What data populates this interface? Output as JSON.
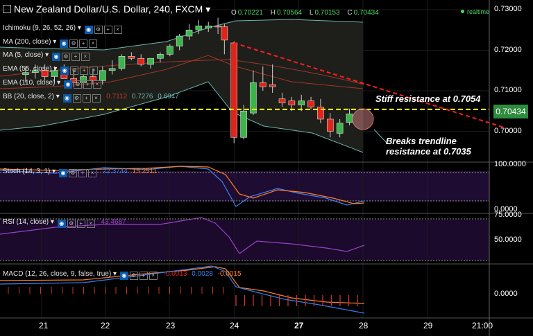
{
  "header": {
    "title": "New Zealand Dollar/U.S. Dollar, 240, FXCM",
    "ohlc": {
      "o_label": "O",
      "o": "0.70221",
      "h_label": "H",
      "h": "0.70564",
      "l_label": "L",
      "l": "0.70153",
      "c_label": "C",
      "c": "0.70434"
    },
    "realtime": "realtime"
  },
  "indicators": {
    "ichimoku": "Ichimoku (9, 26, 52, 26)",
    "ma200": "MA (200, close)",
    "ma5": "MA (5, close)",
    "ema55": "EMA (55, close)",
    "ema110": "EMA (110, close)",
    "bb": "BB (20, close, 2)",
    "bb_values": [
      "0.7112",
      "0.7276",
      "0.6947"
    ]
  },
  "annotations": {
    "stiff": "Stiff resistance at 0.7054",
    "breaks_line1": "Breaks trendline",
    "breaks_line2": "resistance at 0.7035"
  },
  "price_axis": {
    "labels": [
      "0.73000",
      "0.72000",
      "0.71000",
      "0.70000"
    ],
    "current": "0.70434"
  },
  "stoch": {
    "label": "Stoch (14, 3, 1)",
    "k": "22.3744",
    "d": "15.2511",
    "axis": [
      "100.0000",
      "0.0000"
    ]
  },
  "rsi": {
    "label": "RSI (14, close)",
    "value": "43.4687",
    "axis": [
      "75.0000",
      "50.0000"
    ]
  },
  "macd": {
    "label": "MACD (12, 26, close, 9, false, true)",
    "hist": "-0.0013",
    "signal": "0.0028",
    "macd": "-0.0015",
    "axis": [
      "0.0000"
    ]
  },
  "dates": [
    "21",
    "22",
    "23",
    "24",
    "27",
    "28",
    "29",
    "21:00"
  ],
  "colors": {
    "up": "#3cb44b",
    "down": "#e2231a",
    "resistance": "#ffff00",
    "trendline": "#ff1f1f",
    "bb": "#6bb6b0",
    "stoch_k": "#3b82f6",
    "stoch_d": "#ff7f27",
    "rsi": "#9b3fc4"
  },
  "chart_data": {
    "type": "candlestick",
    "ylim": [
      0.694,
      0.733
    ],
    "resistance_level": 0.7054,
    "trendline": [
      [
        0.7218,
        24.0
      ],
      [
        0.7035,
        28.05
      ]
    ],
    "candles": [
      {
        "t": 20.75,
        "o": 0.714,
        "h": 0.716,
        "l": 0.712,
        "c": 0.7145
      },
      {
        "t": 20.9,
        "o": 0.7145,
        "h": 0.7165,
        "l": 0.713,
        "c": 0.715
      },
      {
        "t": 21.05,
        "o": 0.715,
        "h": 0.7165,
        "l": 0.7125,
        "c": 0.7135
      },
      {
        "t": 21.2,
        "o": 0.7135,
        "h": 0.716,
        "l": 0.712,
        "c": 0.715
      },
      {
        "t": 21.35,
        "o": 0.715,
        "h": 0.7165,
        "l": 0.713,
        "c": 0.713
      },
      {
        "t": 21.5,
        "o": 0.713,
        "h": 0.715,
        "l": 0.711,
        "c": 0.712
      },
      {
        "t": 21.65,
        "o": 0.712,
        "h": 0.714,
        "l": 0.7105,
        "c": 0.7135
      },
      {
        "t": 21.8,
        "o": 0.7135,
        "h": 0.7155,
        "l": 0.7115,
        "c": 0.7125
      },
      {
        "t": 21.95,
        "o": 0.7125,
        "h": 0.716,
        "l": 0.7115,
        "c": 0.715
      },
      {
        "t": 22.1,
        "o": 0.715,
        "h": 0.7175,
        "l": 0.714,
        "c": 0.7155
      },
      {
        "t": 22.25,
        "o": 0.7155,
        "h": 0.719,
        "l": 0.715,
        "c": 0.7185
      },
      {
        "t": 22.4,
        "o": 0.7185,
        "h": 0.7195,
        "l": 0.7175,
        "c": 0.718
      },
      {
        "t": 22.55,
        "o": 0.718,
        "h": 0.719,
        "l": 0.716,
        "c": 0.7165
      },
      {
        "t": 22.7,
        "o": 0.7165,
        "h": 0.718,
        "l": 0.7155,
        "c": 0.718
      },
      {
        "t": 22.85,
        "o": 0.718,
        "h": 0.7195,
        "l": 0.717,
        "c": 0.719
      },
      {
        "t": 23.0,
        "o": 0.719,
        "h": 0.7215,
        "l": 0.7185,
        "c": 0.721
      },
      {
        "t": 23.15,
        "o": 0.721,
        "h": 0.724,
        "l": 0.72,
        "c": 0.7235
      },
      {
        "t": 23.3,
        "o": 0.7235,
        "h": 0.7265,
        "l": 0.7225,
        "c": 0.725
      },
      {
        "t": 23.45,
        "o": 0.725,
        "h": 0.7275,
        "l": 0.724,
        "c": 0.726
      },
      {
        "t": 23.6,
        "o": 0.7255,
        "h": 0.727,
        "l": 0.7245,
        "c": 0.726
      },
      {
        "t": 23.75,
        "o": 0.726,
        "h": 0.728,
        "l": 0.724,
        "c": 0.7258
      },
      {
        "t": 23.85,
        "o": 0.7258,
        "h": 0.7265,
        "l": 0.719,
        "c": 0.7225
      },
      {
        "t": 24.0,
        "o": 0.7218,
        "h": 0.7222,
        "l": 0.697,
        "c": 0.6985
      },
      {
        "t": 24.15,
        "o": 0.6985,
        "h": 0.7065,
        "l": 0.698,
        "c": 0.705
      },
      {
        "t": 24.3,
        "o": 0.7045,
        "h": 0.715,
        "l": 0.704,
        "c": 0.712
      },
      {
        "t": 24.45,
        "o": 0.712,
        "h": 0.716,
        "l": 0.71,
        "c": 0.711
      },
      {
        "t": 24.6,
        "o": 0.7115,
        "h": 0.7165,
        "l": 0.7095,
        "c": 0.711
      },
      {
        "t": 24.75,
        "o": 0.708,
        "h": 0.7095,
        "l": 0.706,
        "c": 0.707
      },
      {
        "t": 24.9,
        "o": 0.7075,
        "h": 0.7085,
        "l": 0.705,
        "c": 0.7065
      },
      {
        "t": 25.05,
        "o": 0.7065,
        "h": 0.709,
        "l": 0.705,
        "c": 0.7075
      },
      {
        "t": 25.2,
        "o": 0.7075,
        "h": 0.7085,
        "l": 0.7055,
        "c": 0.706
      },
      {
        "t": 25.35,
        "o": 0.706,
        "h": 0.708,
        "l": 0.702,
        "c": 0.703
      },
      {
        "t": 25.5,
        "o": 0.703,
        "h": 0.7045,
        "l": 0.6985,
        "c": 0.7
      },
      {
        "t": 25.65,
        "o": 0.6995,
        "h": 0.703,
        "l": 0.6985,
        "c": 0.702
      },
      {
        "t": 25.8,
        "o": 0.7022,
        "h": 0.7056,
        "l": 0.7015,
        "c": 0.7043
      }
    ]
  }
}
